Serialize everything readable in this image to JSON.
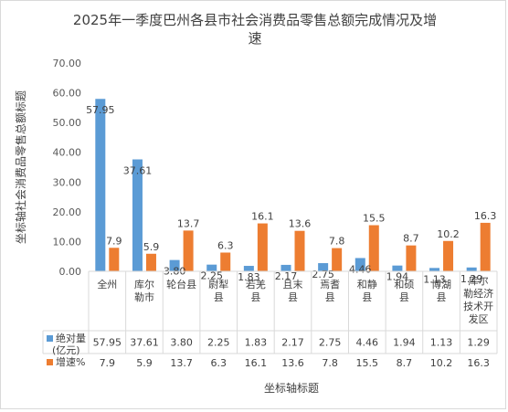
{
  "chart_data": {
    "type": "bar",
    "title": "2025年一季度巴州各县市社会消费品零售总额完成情况及增速",
    "title_lines": [
      "2025年一季度巴州各县市社会消费品零售总额完成情况及增",
      "速"
    ],
    "ylabel": "坐标轴社会消费品零售总额标题",
    "xlabel": "坐标轴标题",
    "ylim": [
      0,
      70
    ],
    "yticks": [
      "0.00",
      "10.00",
      "20.00",
      "30.00",
      "40.00",
      "50.00",
      "60.00",
      "70.00"
    ],
    "categories": [
      "全州",
      "库尔勒市",
      "轮台县",
      "尉犁县",
      "若羌县",
      "且末县",
      "焉耆县",
      "和静县",
      "和硕县",
      "博湖县",
      "库尔勒经济技术开发区"
    ],
    "category_lines": [
      [
        "全州"
      ],
      [
        "库尔",
        "勒市"
      ],
      [
        "轮台县"
      ],
      [
        "尉犁",
        "县"
      ],
      [
        "若羌",
        "县"
      ],
      [
        "且末",
        "县"
      ],
      [
        "焉耆",
        "县"
      ],
      [
        "和静",
        "县"
      ],
      [
        "和硕",
        "县"
      ],
      [
        "博湖",
        "县"
      ],
      [
        "库尔",
        "勒经济",
        "技术开",
        "发区"
      ]
    ],
    "series": [
      {
        "name": "绝对量(亿元)",
        "name_lines": [
          "绝对量",
          "(亿元)"
        ],
        "color": "#5B9BD5",
        "values": [
          57.95,
          37.61,
          3.8,
          2.25,
          1.83,
          2.17,
          2.75,
          4.46,
          1.94,
          1.13,
          1.29
        ],
        "labels": [
          "57.95",
          "37.61",
          "3.80",
          "2.25",
          "1.83",
          "2.17",
          "2.75",
          "4.46",
          "1.94",
          "1.13",
          "1.29"
        ]
      },
      {
        "name": "增速%",
        "name_lines": [
          "增速%"
        ],
        "color": "#ED7D31",
        "values": [
          7.9,
          5.9,
          13.7,
          6.3,
          16.1,
          13.6,
          7.8,
          15.5,
          8.7,
          10.2,
          16.3
        ],
        "labels": [
          "7.9",
          "5.9",
          "13.7",
          "6.3",
          "16.1",
          "13.6",
          "7.8",
          "15.5",
          "8.7",
          "10.2",
          "16.3"
        ]
      }
    ],
    "grid": false,
    "legend": "data-table"
  }
}
